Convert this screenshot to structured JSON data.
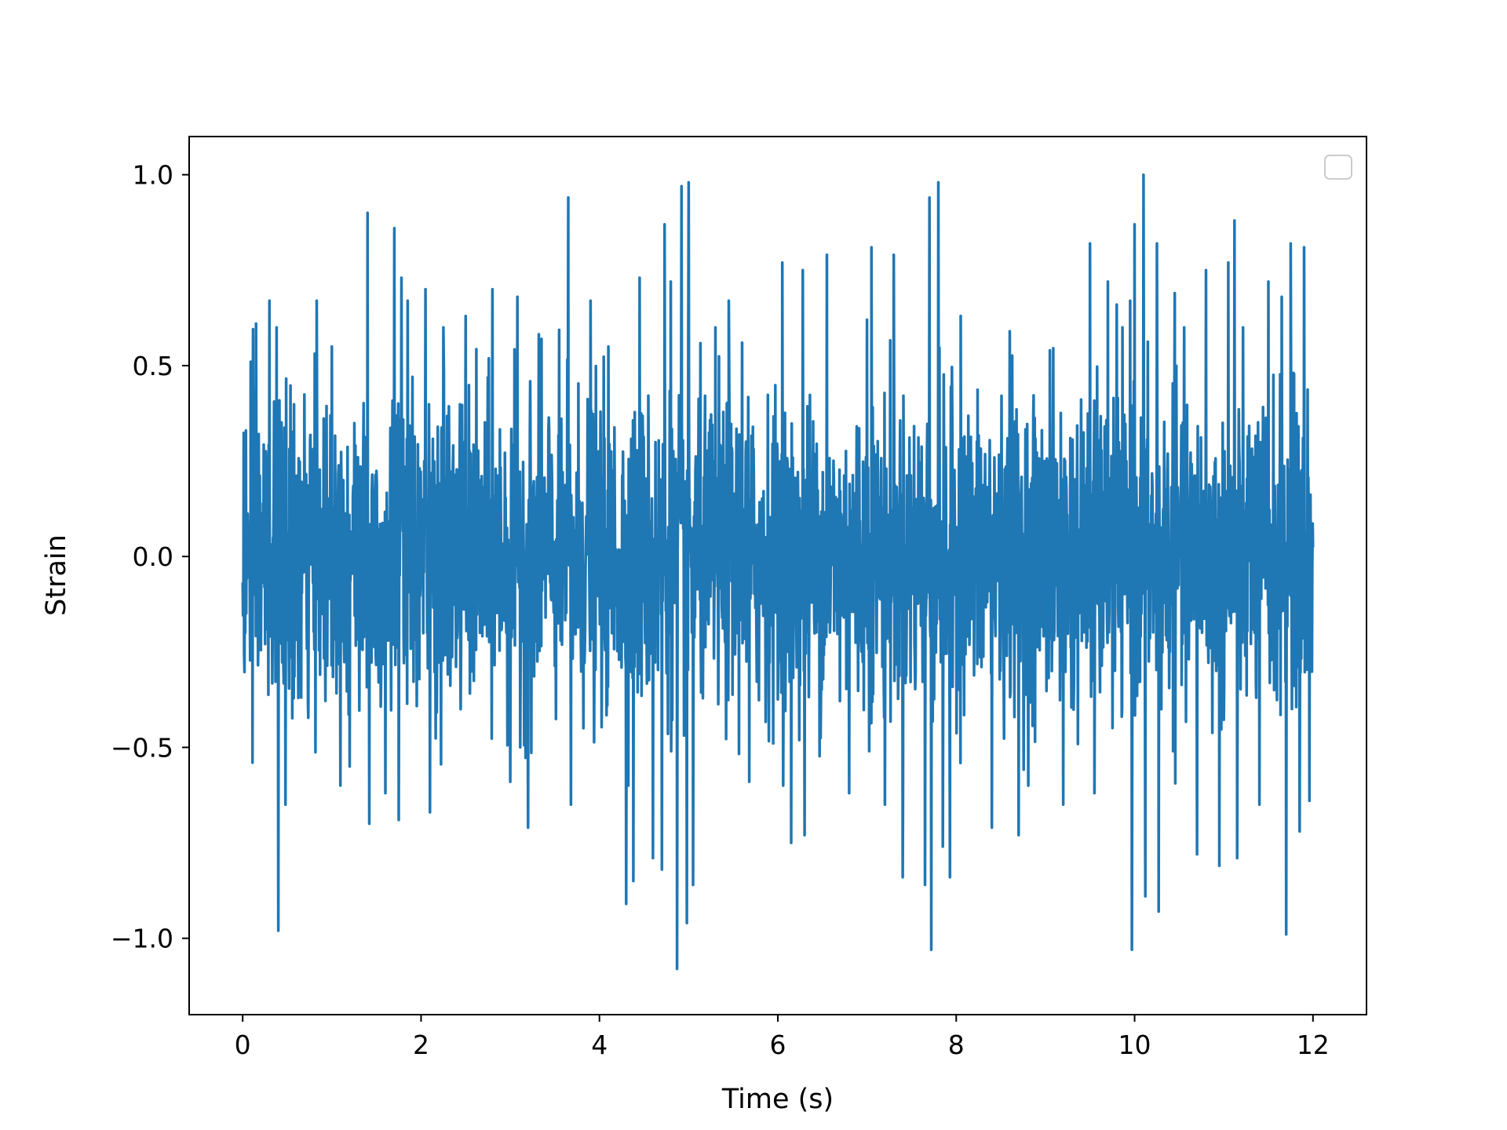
{
  "chart_data": {
    "type": "line",
    "title": "",
    "xlabel": "Time (s)",
    "ylabel": "Strain",
    "xlim": [
      -0.6,
      12.6
    ],
    "ylim": [
      -1.2,
      1.1
    ],
    "x_ticks": [
      0,
      2,
      4,
      6,
      8,
      10,
      12
    ],
    "x_tick_labels": [
      "0",
      "2",
      "4",
      "6",
      "8",
      "10",
      "12"
    ],
    "y_ticks": [
      1.0,
      0.5,
      0.0,
      -0.5,
      -1.0
    ],
    "y_tick_labels": [
      "1.0",
      "0.5",
      "0.0",
      "−0.5",
      "−1.0"
    ],
    "grid": false,
    "legend": {
      "placement": "top-right",
      "entries": []
    },
    "line_color": "#1f77b4",
    "series": [
      {
        "x_start": 0,
        "x_end": 12,
        "noise_std": 0.2,
        "peaks": [
          {
            "x": 0.09,
            "y": 0.51
          },
          {
            "x": 0.11,
            "y": -0.54
          },
          {
            "x": 0.15,
            "y": 0.61
          },
          {
            "x": 0.3,
            "y": 0.67
          },
          {
            "x": 0.38,
            "y": 0.6
          },
          {
            "x": 0.4,
            "y": -0.98
          },
          {
            "x": 0.48,
            "y": -0.65
          },
          {
            "x": 0.83,
            "y": 0.67
          },
          {
            "x": 1.0,
            "y": 0.55
          },
          {
            "x": 1.2,
            "y": -0.55
          },
          {
            "x": 1.4,
            "y": 0.9
          },
          {
            "x": 1.42,
            "y": -0.7
          },
          {
            "x": 1.6,
            "y": -0.62
          },
          {
            "x": 1.7,
            "y": 0.86
          },
          {
            "x": 1.75,
            "y": -0.69
          },
          {
            "x": 1.78,
            "y": 0.73
          },
          {
            "x": 1.85,
            "y": 0.67
          },
          {
            "x": 2.05,
            "y": 0.7
          },
          {
            "x": 2.1,
            "y": -0.67
          },
          {
            "x": 2.25,
            "y": 0.6
          },
          {
            "x": 2.5,
            "y": 0.63
          },
          {
            "x": 2.8,
            "y": 0.7
          },
          {
            "x": 3.0,
            "y": -0.59
          },
          {
            "x": 3.08,
            "y": 0.68
          },
          {
            "x": 3.2,
            "y": -0.71
          },
          {
            "x": 3.35,
            "y": 0.57
          },
          {
            "x": 3.65,
            "y": 0.94
          },
          {
            "x": 3.68,
            "y": -0.65
          },
          {
            "x": 3.9,
            "y": 0.67
          },
          {
            "x": 4.1,
            "y": 0.55
          },
          {
            "x": 4.3,
            "y": -0.91
          },
          {
            "x": 4.38,
            "y": -0.85
          },
          {
            "x": 4.45,
            "y": 0.73
          },
          {
            "x": 4.6,
            "y": -0.79
          },
          {
            "x": 4.7,
            "y": -0.82
          },
          {
            "x": 4.73,
            "y": 0.87
          },
          {
            "x": 4.8,
            "y": 0.72
          },
          {
            "x": 4.87,
            "y": -1.08
          },
          {
            "x": 4.92,
            "y": 0.97
          },
          {
            "x": 4.98,
            "y": -0.96
          },
          {
            "x": 5.0,
            "y": 0.98
          },
          {
            "x": 5.05,
            "y": -0.86
          },
          {
            "x": 5.3,
            "y": 0.6
          },
          {
            "x": 5.45,
            "y": 0.67
          },
          {
            "x": 5.6,
            "y": 0.56
          },
          {
            "x": 5.68,
            "y": -0.59
          },
          {
            "x": 6.05,
            "y": 0.77
          },
          {
            "x": 6.15,
            "y": -0.75
          },
          {
            "x": 6.28,
            "y": 0.75
          },
          {
            "x": 6.3,
            "y": -0.73
          },
          {
            "x": 6.55,
            "y": 0.79
          },
          {
            "x": 6.8,
            "y": -0.62
          },
          {
            "x": 7.0,
            "y": 0.62
          },
          {
            "x": 7.05,
            "y": 0.81
          },
          {
            "x": 7.2,
            "y": -0.65
          },
          {
            "x": 7.3,
            "y": 0.79
          },
          {
            "x": 7.4,
            "y": -0.84
          },
          {
            "x": 7.65,
            "y": -0.86
          },
          {
            "x": 7.7,
            "y": 0.94
          },
          {
            "x": 7.72,
            "y": -1.03
          },
          {
            "x": 7.8,
            "y": 0.98
          },
          {
            "x": 7.85,
            "y": -0.76
          },
          {
            "x": 7.93,
            "y": -0.84
          },
          {
            "x": 8.05,
            "y": 0.63
          },
          {
            "x": 8.4,
            "y": -0.71
          },
          {
            "x": 8.6,
            "y": 0.59
          },
          {
            "x": 8.7,
            "y": -0.73
          },
          {
            "x": 9.05,
            "y": 0.54
          },
          {
            "x": 9.2,
            "y": -0.65
          },
          {
            "x": 9.5,
            "y": 0.82
          },
          {
            "x": 9.55,
            "y": -0.62
          },
          {
            "x": 9.7,
            "y": 0.72
          },
          {
            "x": 9.8,
            "y": 0.66
          },
          {
            "x": 9.95,
            "y": 0.67
          },
          {
            "x": 9.97,
            "y": -1.03
          },
          {
            "x": 10.0,
            "y": 0.87
          },
          {
            "x": 10.1,
            "y": 1.0
          },
          {
            "x": 10.12,
            "y": -0.89
          },
          {
            "x": 10.25,
            "y": 0.82
          },
          {
            "x": 10.27,
            "y": -0.93
          },
          {
            "x": 10.45,
            "y": 0.69
          },
          {
            "x": 10.7,
            "y": -0.78
          },
          {
            "x": 10.8,
            "y": 0.75
          },
          {
            "x": 10.95,
            "y": -0.81
          },
          {
            "x": 11.05,
            "y": 0.77
          },
          {
            "x": 11.12,
            "y": 0.88
          },
          {
            "x": 11.15,
            "y": -0.79
          },
          {
            "x": 11.4,
            "y": -0.65
          },
          {
            "x": 11.5,
            "y": 0.72
          },
          {
            "x": 11.65,
            "y": 0.68
          },
          {
            "x": 11.7,
            "y": -0.99
          },
          {
            "x": 11.75,
            "y": 0.82
          },
          {
            "x": 11.85,
            "y": -0.72
          },
          {
            "x": 11.9,
            "y": 0.81
          },
          {
            "x": 11.96,
            "y": -0.64
          }
        ]
      }
    ]
  }
}
